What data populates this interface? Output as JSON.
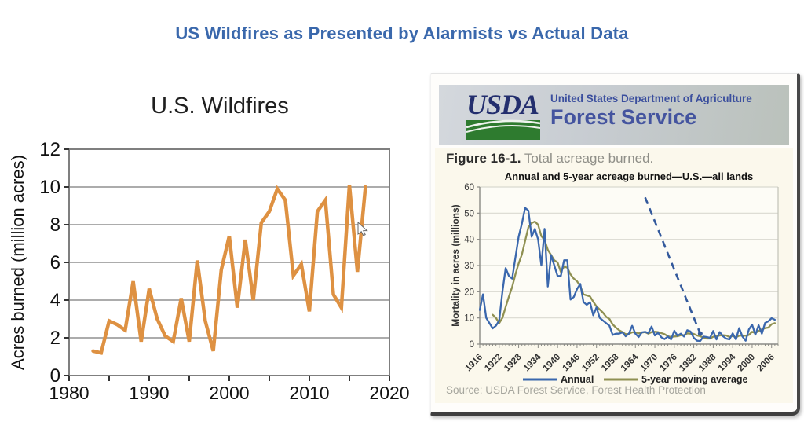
{
  "page": {
    "title": "US Wildfires as Presented by Alarmists vs Actual Data"
  },
  "colors": {
    "title_accent": "#3a68ac",
    "alarmist_line": "#de9142",
    "annual_line": "#3a67ad",
    "moving_avg_line": "#8f9052",
    "dashed_annotation": "#33599c",
    "usda_navy": "#232e6e",
    "usda_green": "#2e7b2f",
    "figure_bg": "#fbf8ec"
  },
  "icons": {
    "mouse_cursor": "pointer-arrow",
    "usda_logo": "green-fields-swoosh"
  },
  "usda_panel": {
    "logo_text": "USDA",
    "dept_line": "United States Department of Agriculture",
    "service_line": "Forest Service",
    "figure_label": "Figure 16-1.",
    "figure_caption": " Total acreage burned.",
    "source": "Source: USDA Forest Service, Forest Health Protection"
  },
  "chart_data": [
    {
      "id": "alarmist-chart",
      "type": "line",
      "title": "U.S. Wildfires",
      "xlabel": "",
      "ylabel": "Acres burned (million acres)",
      "xlim": [
        1980,
        2020
      ],
      "ylim": [
        0,
        12
      ],
      "xticks": [
        1980,
        1990,
        2000,
        2010,
        2020
      ],
      "yticks": [
        0,
        2,
        4,
        6,
        8,
        10,
        12
      ],
      "minor_xtick_step": 5,
      "grid": true,
      "legend_position": "none",
      "line_color": "#de9142",
      "start_year": 1983,
      "values": [
        1.3,
        1.2,
        2.9,
        2.7,
        2.4,
        5.0,
        1.8,
        4.6,
        3.0,
        2.1,
        1.8,
        4.1,
        1.8,
        6.1,
        2.9,
        1.3,
        5.6,
        7.4,
        3.6,
        7.2,
        4.0,
        8.1,
        8.7,
        9.9,
        9.3,
        5.3,
        5.9,
        3.4,
        8.7,
        9.3,
        4.3,
        3.6,
        10.1,
        5.5,
        10.0
      ]
    },
    {
      "id": "usda-chart",
      "type": "line",
      "title": "Annual and 5-year acreage burned—U.S.—all lands",
      "xlabel": "",
      "ylabel": "Mortality in acres (millions)",
      "xlim": [
        1916,
        2008
      ],
      "ylim": [
        0,
        60
      ],
      "xticks": [
        1916,
        1922,
        1928,
        1934,
        1940,
        1946,
        1952,
        1958,
        1964,
        1970,
        1976,
        1982,
        1988,
        1994,
        2000,
        2006
      ],
      "yticks": [
        0,
        10,
        20,
        30,
        40,
        50,
        60
      ],
      "grid": true,
      "legend_position": "bottom",
      "series": [
        {
          "name": "Annual",
          "color": "#3a67ad",
          "start_year": 1916,
          "values": [
            13,
            19,
            10,
            8,
            6,
            7,
            9,
            20,
            29,
            26,
            25,
            33,
            41,
            46,
            52,
            51,
            41,
            44,
            40,
            30,
            44,
            22,
            34,
            30,
            26,
            26,
            32,
            32,
            17,
            18,
            21,
            23,
            16,
            15,
            16,
            11,
            14,
            10,
            9,
            8,
            7,
            3.5,
            4,
            4,
            4.5,
            3,
            4,
            7,
            4,
            2.7,
            4.5,
            4.7,
            4.2,
            6.7,
            3.3,
            4.3,
            2.6,
            1.9,
            2.9,
            1.8,
            5.1,
            3.2,
            4,
            2.9,
            5.3,
            4.8,
            2.4,
            1.3,
            1.2,
            2.9,
            2.7,
            2.4,
            5,
            1.8,
            4.6,
            3,
            2.1,
            1.8,
            4.1,
            1.8,
            6.1,
            2.9,
            1.3,
            5.6,
            7.4,
            3.6,
            7.2,
            4,
            8.1,
            8.7,
            9.9,
            9.3
          ]
        },
        {
          "name": "5-year moving average",
          "color": "#8f9052",
          "start_year": 1920,
          "values": [
            11.2,
            10,
            8,
            10,
            14.2,
            18.2,
            21.8,
            26.6,
            30.8,
            34.2,
            39.4,
            44.6,
            46.2,
            46.8,
            45.6,
            41.2,
            39.8,
            36,
            34,
            32,
            31.2,
            27.6,
            29.6,
            29.2,
            26.6,
            25,
            24,
            22.2,
            19,
            18.6,
            18.2,
            16.2,
            14.4,
            13.2,
            12,
            10.4,
            9.6,
            7.5,
            6.3,
            5.3,
            4.6,
            3.8,
            3.9,
            4.5,
            4.5,
            4.1,
            4.4,
            4.6,
            4,
            4.6,
            4.7,
            4.6,
            4.2,
            3.8,
            3,
            2.7,
            2.9,
            3,
            3.4,
            3.4,
            4.1,
            4,
            3.9,
            3.3,
            3,
            2.5,
            2.1,
            2.1,
            2.8,
            3,
            3.3,
            3.4,
            3.3,
            2.7,
            3.1,
            2.6,
            3.2,
            3.3,
            3.2,
            3.5,
            4.7,
            4.2,
            5,
            5.6,
            6.1,
            6.3,
            7.6,
            8
          ]
        }
      ],
      "annotation": {
        "type": "dashed-line",
        "from_year": 1967,
        "from_value": 56,
        "to_year": 1984,
        "to_value": 4,
        "color": "#33599c"
      }
    }
  ]
}
